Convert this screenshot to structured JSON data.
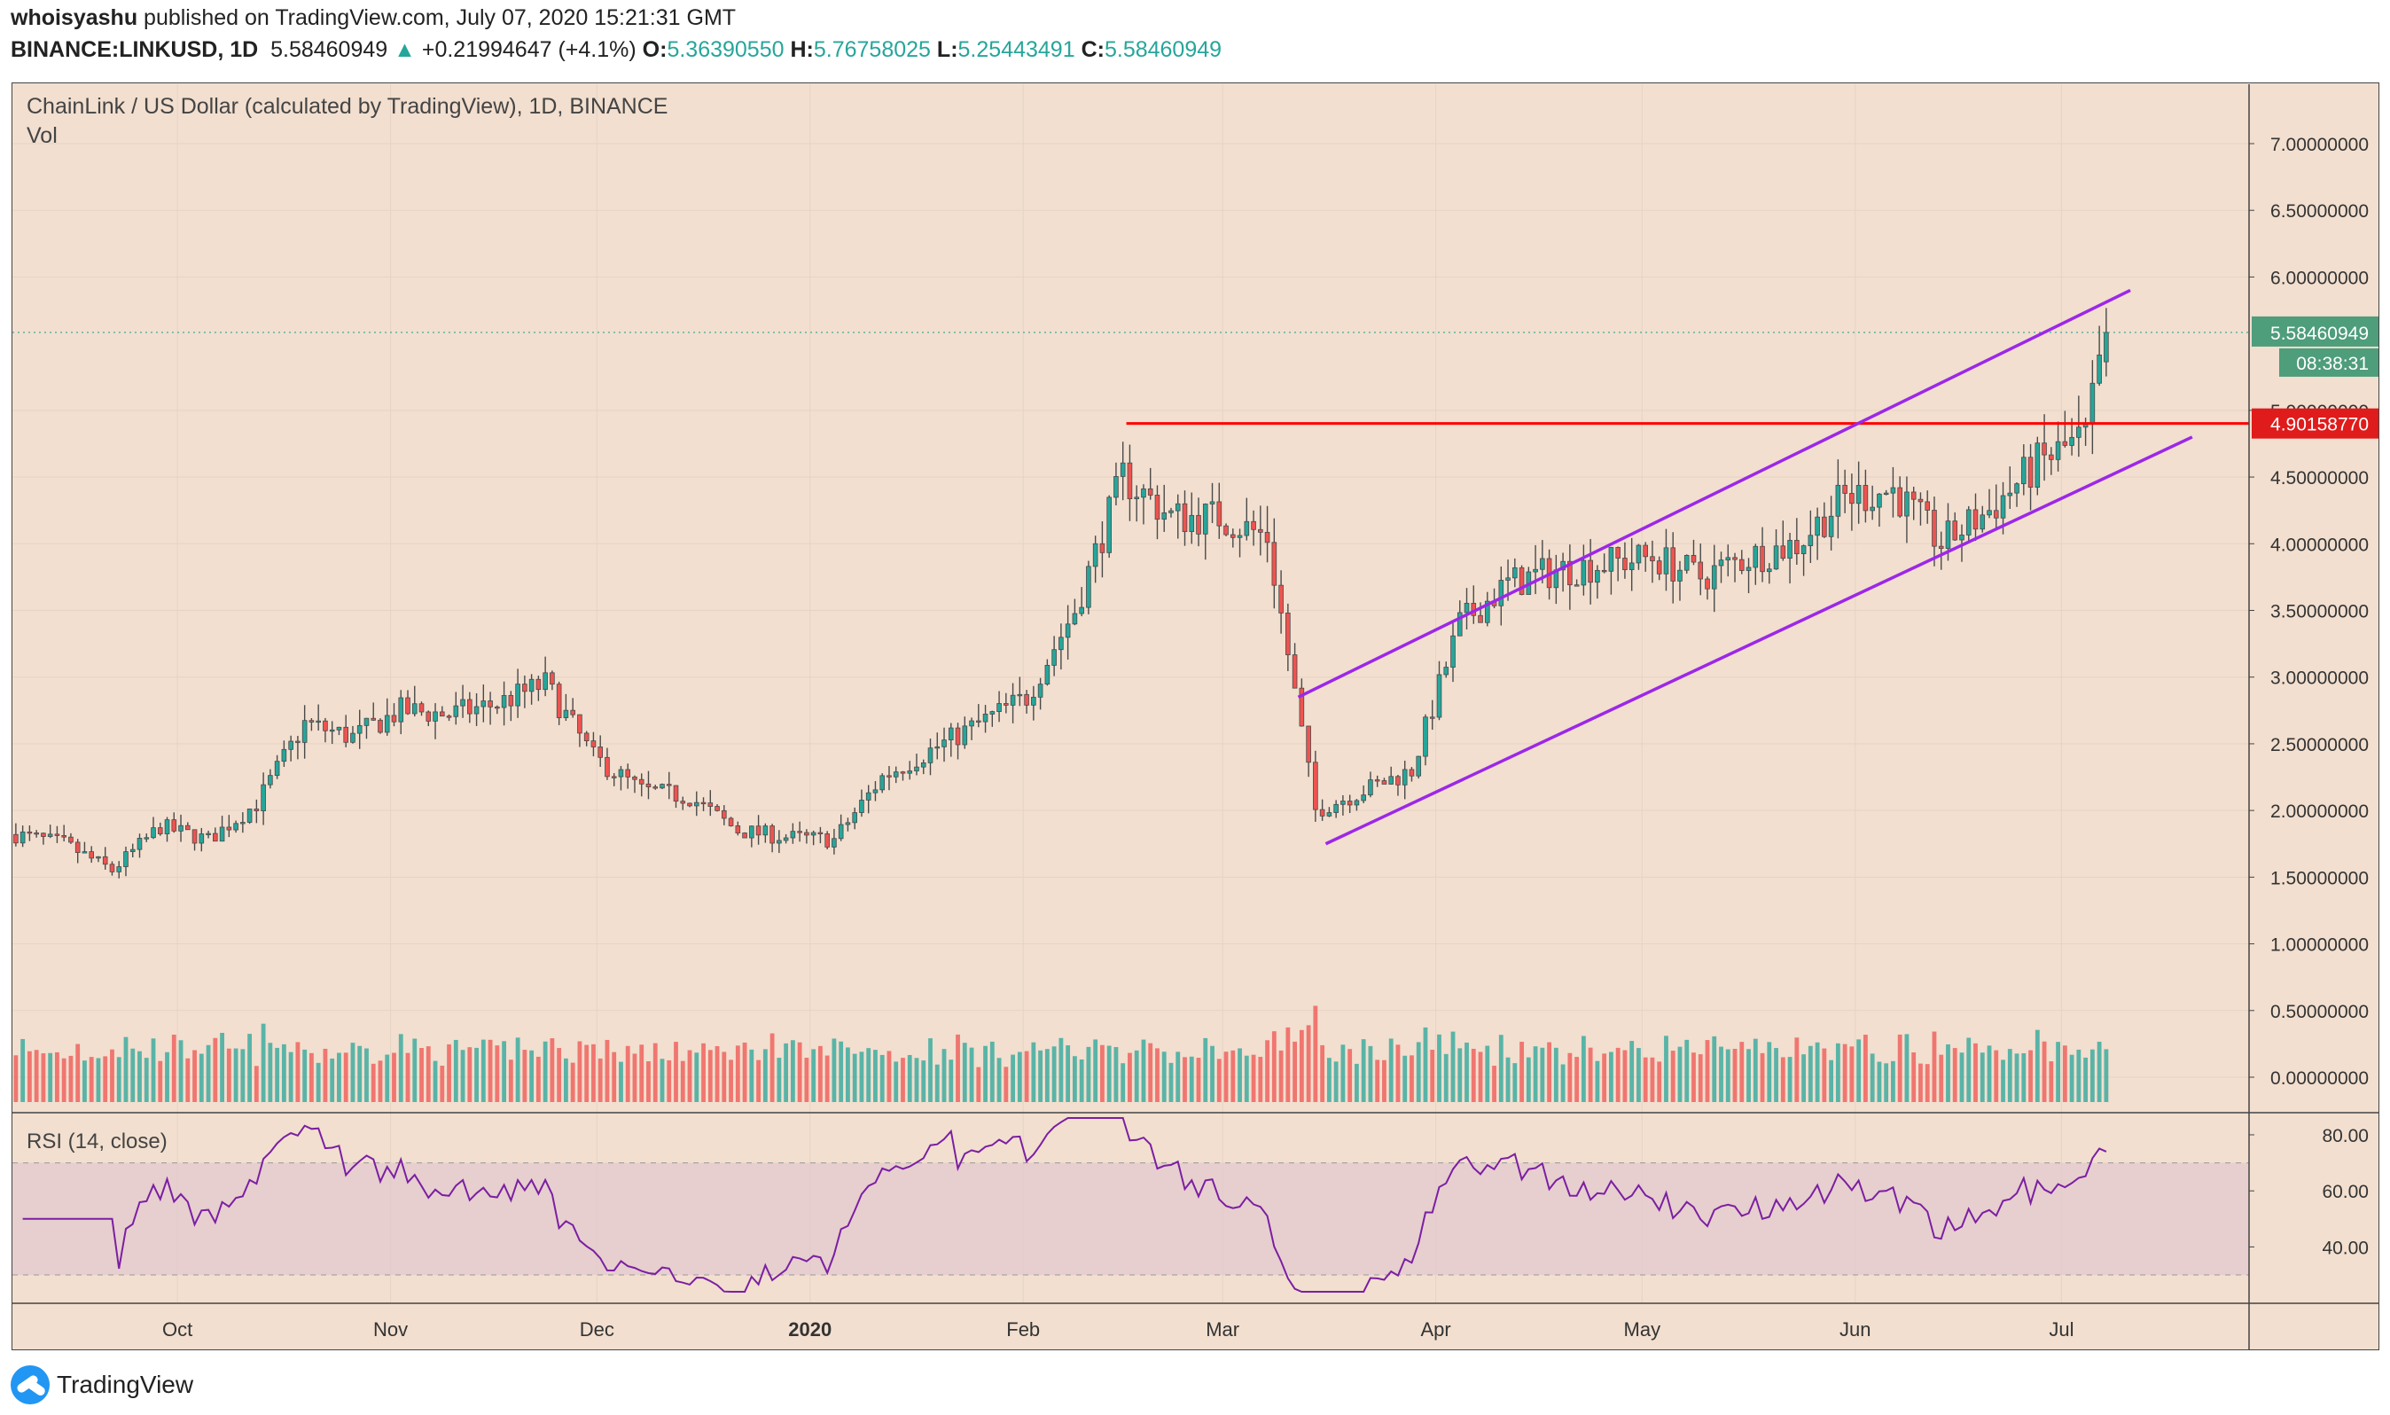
{
  "header": {
    "author": "whoisyashu",
    "published": " published on TradingView.com, July 07, 2020 15:21:31 GMT",
    "symbol": "BINANCE:LINKUSD, 1D",
    "last": "5.58460949",
    "change_arrow": "▲",
    "change": "+0.21994647 (+4.1%)",
    "o_label": "O:",
    "o": "5.36390550",
    "h_label": "H:",
    "h": "5.76758025",
    "l_label": "L:",
    "l": "5.25443491",
    "c_label": "C:",
    "c": "5.58460949"
  },
  "pane": {
    "title": "ChainLink / US Dollar (calculated by TradingView), 1D, BINANCE",
    "vol_label": "Vol",
    "rsi_label": "RSI (14, close)"
  },
  "price_axis": [
    "7.00000000",
    "6.50000000",
    "6.00000000",
    "5.00000000",
    "4.50000000",
    "4.00000000",
    "3.50000000",
    "3.00000000",
    "2.50000000",
    "2.00000000",
    "1.50000000",
    "1.00000000",
    "0.50000000",
    "0.00000000"
  ],
  "rsi_axis": [
    "80.00",
    "60.00",
    "40.00"
  ],
  "time_axis": [
    "Oct",
    "Nov",
    "Dec",
    "2020",
    "Feb",
    "Mar",
    "Apr",
    "May",
    "Jun",
    "Jul"
  ],
  "badges": {
    "last_price": "5.58460949",
    "countdown": "08:38:31",
    "resistance": "4.90158770"
  },
  "colors": {
    "up": "#26a69a",
    "down": "#ef5350",
    "bg": "#f2dfcf",
    "channel": "#9c27e8",
    "resistance": "#ff0000",
    "rsi": "#7b1fa2"
  },
  "footer": {
    "logo_text": "TradingView"
  },
  "chart_data": {
    "type": "candlestick",
    "symbol": "LINKUSD",
    "interval": "1D",
    "x_range": [
      "2019-09-07",
      "2020-07-07"
    ],
    "ylim": [
      0,
      7.3
    ],
    "y_ticks": [
      0,
      0.5,
      1,
      1.5,
      2,
      2.5,
      3,
      3.5,
      4,
      4.5,
      5,
      6,
      6.5,
      7
    ],
    "weekly_close": [
      {
        "date": "2019-09-07",
        "close": 1.82
      },
      {
        "date": "2019-09-14",
        "close": 1.75
      },
      {
        "date": "2019-09-21",
        "close": 1.55
      },
      {
        "date": "2019-09-28",
        "close": 1.88
      },
      {
        "date": "2019-10-05",
        "close": 1.78
      },
      {
        "date": "2019-10-12",
        "close": 2.05
      },
      {
        "date": "2019-10-19",
        "close": 2.65
      },
      {
        "date": "2019-10-26",
        "close": 2.55
      },
      {
        "date": "2019-11-02",
        "close": 2.75
      },
      {
        "date": "2019-11-09",
        "close": 2.72
      },
      {
        "date": "2019-11-16",
        "close": 2.8
      },
      {
        "date": "2019-11-23",
        "close": 2.95
      },
      {
        "date": "2019-11-30",
        "close": 2.4
      },
      {
        "date": "2019-12-07",
        "close": 2.15
      },
      {
        "date": "2019-12-14",
        "close": 2.1
      },
      {
        "date": "2019-12-21",
        "close": 1.85
      },
      {
        "date": "2019-12-28",
        "close": 1.8
      },
      {
        "date": "2020-01-04",
        "close": 1.78
      },
      {
        "date": "2020-01-11",
        "close": 2.25
      },
      {
        "date": "2020-01-18",
        "close": 2.45
      },
      {
        "date": "2020-01-25",
        "close": 2.65
      },
      {
        "date": "2020-02-01",
        "close": 2.85
      },
      {
        "date": "2020-02-08",
        "close": 3.5
      },
      {
        "date": "2020-02-15",
        "close": 4.5
      },
      {
        "date": "2020-02-22",
        "close": 4.2
      },
      {
        "date": "2020-02-29",
        "close": 4.2
      },
      {
        "date": "2020-03-07",
        "close": 4.05
      },
      {
        "date": "2020-03-14",
        "close": 2.0
      },
      {
        "date": "2020-03-21",
        "close": 2.15
      },
      {
        "date": "2020-03-28",
        "close": 2.3
      },
      {
        "date": "2020-04-04",
        "close": 3.4
      },
      {
        "date": "2020-04-11",
        "close": 3.7
      },
      {
        "date": "2020-04-18",
        "close": 3.8
      },
      {
        "date": "2020-04-25",
        "close": 3.85
      },
      {
        "date": "2020-05-02",
        "close": 3.9
      },
      {
        "date": "2020-05-09",
        "close": 3.75
      },
      {
        "date": "2020-05-16",
        "close": 3.9
      },
      {
        "date": "2020-05-23",
        "close": 4.0
      },
      {
        "date": "2020-05-30",
        "close": 4.35
      },
      {
        "date": "2020-06-06",
        "close": 4.4
      },
      {
        "date": "2020-06-13",
        "close": 4.0
      },
      {
        "date": "2020-06-20",
        "close": 4.25
      },
      {
        "date": "2020-06-27",
        "close": 4.6
      },
      {
        "date": "2020-07-04",
        "close": 4.8
      },
      {
        "date": "2020-07-07",
        "close": 5.58
      }
    ],
    "last_candle": {
      "date": "2020-07-07",
      "open": 5.3639055,
      "high": 5.76758025,
      "low": 5.25443491,
      "close": 5.58460949
    },
    "horizontal_line": {
      "label": "4.90158770",
      "value": 4.9015877
    },
    "channel": {
      "upper": [
        {
          "date": "2020-03-12",
          "y": 2.85
        },
        {
          "date": "2020-07-11",
          "y": 5.9
        }
      ],
      "lower": [
        {
          "date": "2020-03-16",
          "y": 1.75
        },
        {
          "date": "2020-07-20",
          "y": 4.8
        }
      ]
    },
    "rsi": {
      "ylim": [
        24,
        86
      ],
      "bands": [
        30,
        70
      ],
      "ticks": [
        40,
        60,
        80
      ],
      "last": 74
    }
  }
}
